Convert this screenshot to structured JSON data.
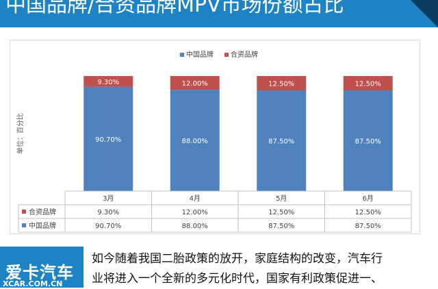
{
  "header": {
    "title": "中国品牌/合资品牌MPV市场份额占比"
  },
  "chart_data": {
    "type": "bar",
    "stacked": true,
    "categories": [
      "3月",
      "4月",
      "5月",
      "6月"
    ],
    "series": [
      {
        "name": "中国品牌",
        "color": "#4f81bd",
        "values": [
          90.7,
          88.0,
          87.5,
          87.5
        ],
        "labels": [
          "90.70%",
          "88.00%",
          "87.50%",
          "87.50%"
        ]
      },
      {
        "name": "合资品牌",
        "color": "#c0504d",
        "values": [
          9.3,
          12.0,
          12.5,
          12.5
        ],
        "labels": [
          "9.30%",
          "12.00%",
          "12.50%",
          "12.50%"
        ]
      }
    ],
    "ylabel": "单位：百分比",
    "ylim": [
      0,
      100
    ],
    "legend": "top-center",
    "data_table": true
  },
  "footer": {
    "logo_text": "爱卡汽车",
    "logo_sub": "XCAR.COM.CN",
    "article_lines": [
      "如今随着我国二胎政策的放开，家庭结构的改变，汽车行",
      "业将进入一个全新的多元化时代，国家有利政策促进一、"
    ]
  }
}
